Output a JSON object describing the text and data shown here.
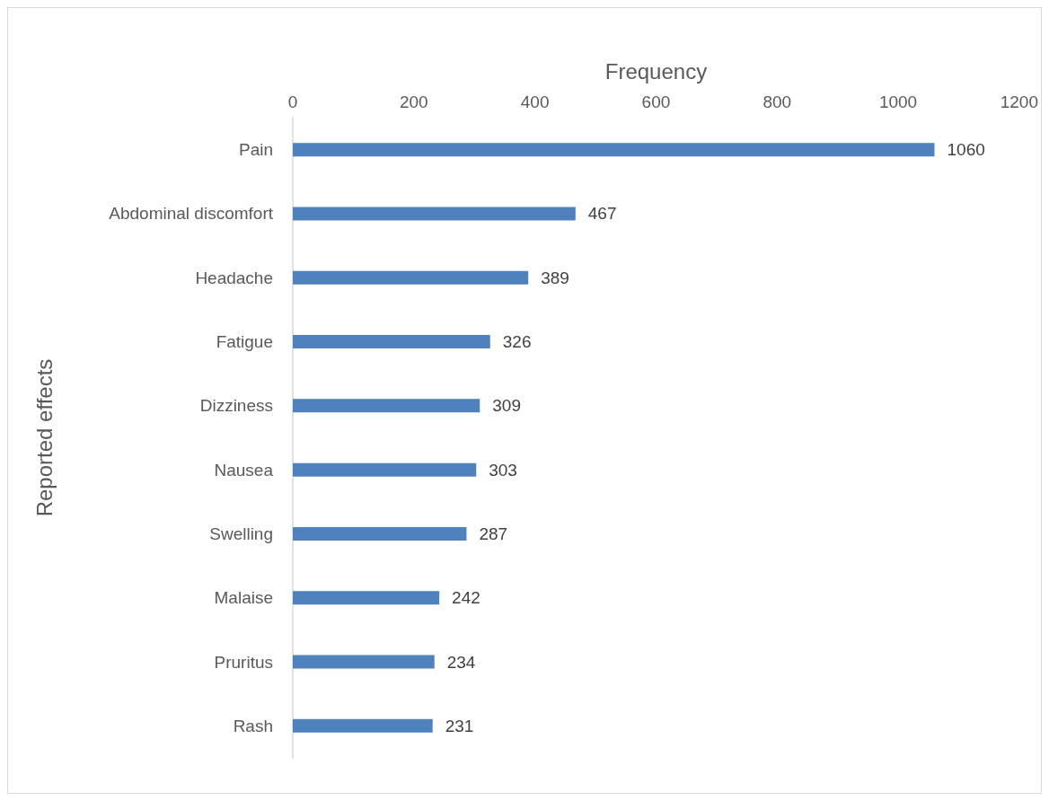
{
  "chart_data": {
    "type": "bar",
    "orientation": "horizontal",
    "xlabel": "Frequency",
    "ylabel": "Reported effects",
    "categories": [
      "Pain",
      "Abdominal discomfort",
      "Headache",
      "Fatigue",
      "Dizziness",
      "Nausea",
      "Swelling",
      "Malaise",
      "Pruritus",
      "Rash"
    ],
    "values": [
      1060,
      467,
      389,
      326,
      309,
      303,
      287,
      242,
      234,
      231
    ],
    "color": "#4f81bd",
    "xlim": [
      0,
      1200
    ],
    "xticks": [
      0,
      200,
      400,
      600,
      800,
      1000,
      1200
    ],
    "grid": false,
    "data_labels": true
  }
}
